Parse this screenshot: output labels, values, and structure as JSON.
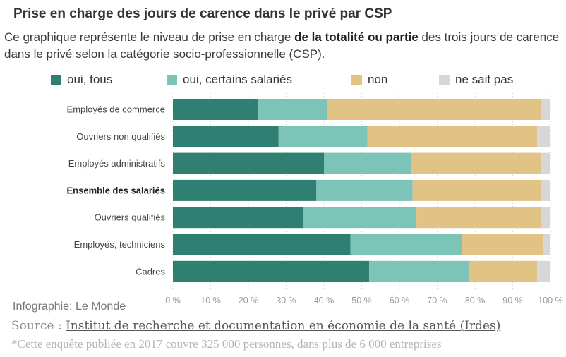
{
  "header": {
    "title": "Prise en charge des jours de carence dans le privé par CSP",
    "subtitle_pre": "Ce graphique représente le niveau de prise en charge ",
    "subtitle_bold": "de la totalité ou partie",
    "subtitle_post": " des trois jours de carence dans le privé selon la catégorie socio-professionnelle (CSP)."
  },
  "colors": {
    "oui_tous": "#2f7f73",
    "oui_certains": "#7cc3b8",
    "non": "#e2c386",
    "ne_sait_pas": "#d7d7d7",
    "grid": "#cfcfcf"
  },
  "chart_data": {
    "type": "bar",
    "orientation": "horizontal",
    "stacked": true,
    "categories": [
      "Employés de commerce",
      "Ouvriers non qualifiés",
      "Employés administratifs",
      "Ensemble des salariés",
      "Ouvriers qualifiés",
      "Employés, techniciens",
      "Cadres"
    ],
    "bold_categories": [
      "Ensemble des salariés"
    ],
    "series": [
      {
        "name": "oui, tous",
        "color": "#2f7f73",
        "values": [
          22.5,
          28,
          40,
          38,
          34.5,
          47,
          52
        ]
      },
      {
        "name": "oui, certains salariés",
        "color": "#7cc3b8",
        "values": [
          18.5,
          23.5,
          23,
          25.5,
          30,
          29.5,
          26.5
        ]
      },
      {
        "name": "non",
        "color": "#e2c386",
        "values": [
          56.5,
          45,
          34.5,
          34,
          33,
          21.5,
          18
        ]
      },
      {
        "name": "ne sait pas",
        "color": "#d7d7d7",
        "values": [
          2.5,
          3.5,
          2.5,
          2.5,
          2.5,
          2,
          3.5
        ]
      }
    ],
    "x_ticks": [
      "0 %",
      "10 %",
      "20 %",
      "30 %",
      "40 %",
      "50 %",
      "60 %",
      "70 %",
      "80 %",
      "90 %",
      "100 %"
    ],
    "xlim": [
      0,
      100
    ],
    "grid": true,
    "legend_position": "top"
  },
  "footer": {
    "credit": "Infographie: Le Monde",
    "source_prefix": "Source : ",
    "source_link": "Institut de recherche et documentation en économie de la santé (Irdes)",
    "note": "*Cette enquête publiée en 2017 couvre 325 000 personnes, dans plus de 6 000 entreprises"
  }
}
